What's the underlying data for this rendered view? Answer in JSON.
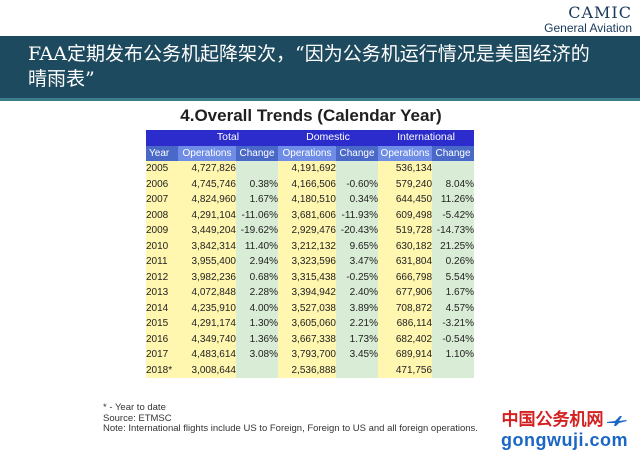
{
  "brand": {
    "name": "CAMIC",
    "sub": "General Aviation"
  },
  "slide_title": "FAA定期发布公务机起降架次，“因为公务机运行情况是美国经济的晴雨表”",
  "table": {
    "title": "4.Overall Trends (Calendar Year)",
    "groups": [
      "Total",
      "Domestic",
      "International"
    ],
    "subheaders": {
      "year": "Year",
      "operations": "Operations",
      "change": "Change"
    },
    "rows": [
      {
        "year": "2005",
        "total_ops": "4,727,826",
        "total_chg": "",
        "dom_ops": "4,191,692",
        "dom_chg": "",
        "intl_ops": "536,134",
        "intl_chg": ""
      },
      {
        "year": "2006",
        "total_ops": "4,745,746",
        "total_chg": "0.38%",
        "dom_ops": "4,166,506",
        "dom_chg": "-0.60%",
        "intl_ops": "579,240",
        "intl_chg": "8.04%"
      },
      {
        "year": "2007",
        "total_ops": "4,824,960",
        "total_chg": "1.67%",
        "dom_ops": "4,180,510",
        "dom_chg": "0.34%",
        "intl_ops": "644,450",
        "intl_chg": "11.26%"
      },
      {
        "year": "2008",
        "total_ops": "4,291,104",
        "total_chg": "-11.06%",
        "dom_ops": "3,681,606",
        "dom_chg": "-11.93%",
        "intl_ops": "609,498",
        "intl_chg": "-5.42%"
      },
      {
        "year": "2009",
        "total_ops": "3,449,204",
        "total_chg": "-19.62%",
        "dom_ops": "2,929,476",
        "dom_chg": "-20.43%",
        "intl_ops": "519,728",
        "intl_chg": "-14.73%"
      },
      {
        "year": "2010",
        "total_ops": "3,842,314",
        "total_chg": "11.40%",
        "dom_ops": "3,212,132",
        "dom_chg": "9.65%",
        "intl_ops": "630,182",
        "intl_chg": "21.25%"
      },
      {
        "year": "2011",
        "total_ops": "3,955,400",
        "total_chg": "2.94%",
        "dom_ops": "3,323,596",
        "dom_chg": "3.47%",
        "intl_ops": "631,804",
        "intl_chg": "0.26%"
      },
      {
        "year": "2012",
        "total_ops": "3,982,236",
        "total_chg": "0.68%",
        "dom_ops": "3,315,438",
        "dom_chg": "-0.25%",
        "intl_ops": "666,798",
        "intl_chg": "5.54%"
      },
      {
        "year": "2013",
        "total_ops": "4,072,848",
        "total_chg": "2.28%",
        "dom_ops": "3,394,942",
        "dom_chg": "2.40%",
        "intl_ops": "677,906",
        "intl_chg": "1.67%"
      },
      {
        "year": "2014",
        "total_ops": "4,235,910",
        "total_chg": "4.00%",
        "dom_ops": "3,527,038",
        "dom_chg": "3.89%",
        "intl_ops": "708,872",
        "intl_chg": "4.57%"
      },
      {
        "year": "2015",
        "total_ops": "4,291,174",
        "total_chg": "1.30%",
        "dom_ops": "3,605,060",
        "dom_chg": "2.21%",
        "intl_ops": "686,114",
        "intl_chg": "-3.21%"
      },
      {
        "year": "2016",
        "total_ops": "4,349,740",
        "total_chg": "1.36%",
        "dom_ops": "3,667,338",
        "dom_chg": "1.73%",
        "intl_ops": "682,402",
        "intl_chg": "-0.54%"
      },
      {
        "year": "2017",
        "total_ops": "4,483,614",
        "total_chg": "3.08%",
        "dom_ops": "3,793,700",
        "dom_chg": "3.45%",
        "intl_ops": "689,914",
        "intl_chg": "1.10%"
      },
      {
        "year": "2018*",
        "total_ops": "3,008,644",
        "total_chg": "",
        "dom_ops": "2,536,888",
        "dom_chg": "",
        "intl_ops": "471,756",
        "intl_chg": ""
      }
    ]
  },
  "notes": [
    "* - Year to date",
    "Source: ETMSC",
    "Note: International flights include US to Foreign, Foreign to US and all foreign operations."
  ],
  "watermark": {
    "cn": "中国公务机网",
    "url": "gongwuji.com",
    "plane_icon": "plane-icon"
  }
}
